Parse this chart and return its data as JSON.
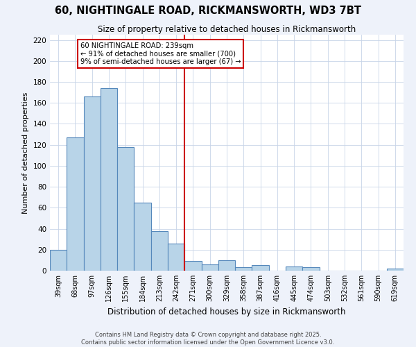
{
  "title": "60, NIGHTINGALE ROAD, RICKMANSWORTH, WD3 7BT",
  "subtitle": "Size of property relative to detached houses in Rickmansworth",
  "xlabel": "Distribution of detached houses by size in Rickmansworth",
  "ylabel": "Number of detached properties",
  "bar_labels": [
    "39sqm",
    "68sqm",
    "97sqm",
    "126sqm",
    "155sqm",
    "184sqm",
    "213sqm",
    "242sqm",
    "271sqm",
    "300sqm",
    "329sqm",
    "358sqm",
    "387sqm",
    "416sqm",
    "445sqm",
    "474sqm",
    "503sqm",
    "532sqm",
    "561sqm",
    "590sqm",
    "619sqm"
  ],
  "bar_values": [
    20,
    127,
    166,
    174,
    118,
    65,
    38,
    26,
    9,
    6,
    10,
    3,
    5,
    0,
    4,
    3,
    0,
    0,
    0,
    0,
    2
  ],
  "bar_color": "#b8d4e8",
  "bar_edge_color": "#5588bb",
  "vline_index": 7,
  "vline_color": "#cc0000",
  "annotation_text": "60 NIGHTINGALE ROAD: 239sqm\n← 91% of detached houses are smaller (700)\n9% of semi-detached houses are larger (67) →",
  "annotation_box_color": "#ffffff",
  "annotation_box_edge_color": "#cc0000",
  "ylim": [
    0,
    225
  ],
  "yticks": [
    0,
    20,
    40,
    60,
    80,
    100,
    120,
    140,
    160,
    180,
    200,
    220
  ],
  "footer_line1": "Contains HM Land Registry data © Crown copyright and database right 2025.",
  "footer_line2": "Contains public sector information licensed under the Open Government Licence v3.0.",
  "bg_color": "#eef2fa",
  "plot_bg_color": "#ffffff",
  "grid_color": "#c8d4e8"
}
